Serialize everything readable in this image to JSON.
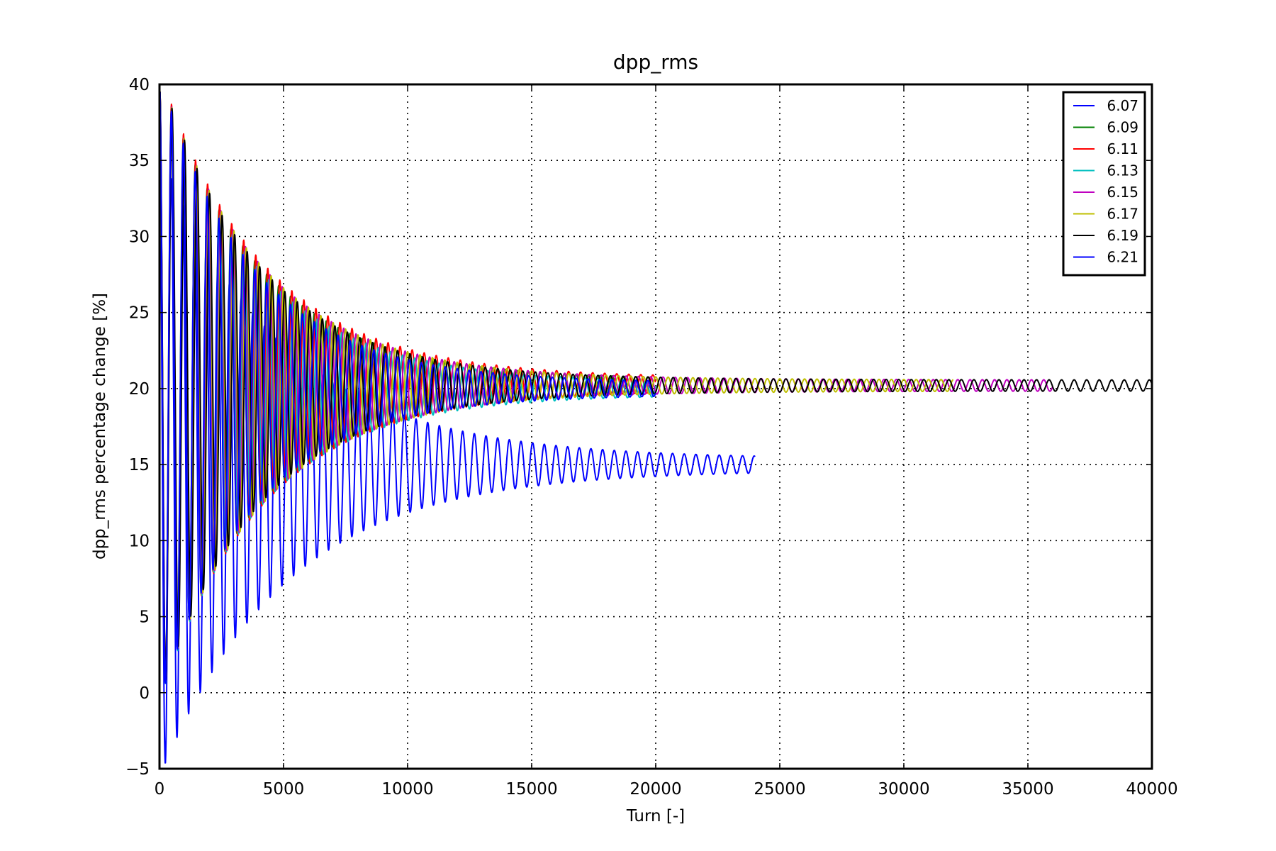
{
  "chart_data": {
    "type": "line",
    "title": "dpp_rms",
    "xlabel": "Turn [-]",
    "ylabel": "dpp_rms percentage change [%]",
    "xlim": [
      0,
      40000
    ],
    "ylim": [
      -5,
      40
    ],
    "xticks": [
      "0",
      "5000",
      "10000",
      "15000",
      "20000",
      "25000",
      "30000",
      "35000",
      "40000"
    ],
    "yticks": [
      "−5",
      "0",
      "5",
      "10",
      "15",
      "20",
      "25",
      "30",
      "35",
      "40"
    ],
    "grid": true,
    "legend_position": "top-right",
    "series": [
      {
        "name": "6.07",
        "color": "#0000ff",
        "end": 24000,
        "asymptote": 15.0,
        "amp0": 20,
        "tau": 5000,
        "period": 470
      },
      {
        "name": "6.09",
        "color": "#008000",
        "end": 20000,
        "asymptote": 20.2,
        "amp0": 20,
        "tau": 4000,
        "period": 480
      },
      {
        "name": "6.11",
        "color": "#ff0000",
        "end": 20000,
        "asymptote": 20.3,
        "amp0": 20,
        "tau": 4200,
        "period": 485
      },
      {
        "name": "6.13",
        "color": "#00bfbf",
        "end": 20000,
        "asymptote": 20.0,
        "amp0": 20,
        "tau": 4000,
        "period": 490
      },
      {
        "name": "6.15",
        "color": "#bf00bf",
        "end": 36000,
        "asymptote": 20.2,
        "amp0": 20,
        "tau": 4100,
        "period": 495
      },
      {
        "name": "6.17",
        "color": "#bfbf00",
        "end": 32000,
        "asymptote": 20.2,
        "amp0": 20,
        "tau": 4100,
        "period": 500
      },
      {
        "name": "6.19",
        "color": "#000000",
        "end": 40000,
        "asymptote": 20.2,
        "amp0": 20,
        "tau": 4000,
        "period": 505
      },
      {
        "name": "6.21",
        "color": "#0000ff",
        "end": 20000,
        "asymptote": 20.0,
        "amp0": 20,
        "tau": 3800,
        "period": 480
      }
    ]
  }
}
